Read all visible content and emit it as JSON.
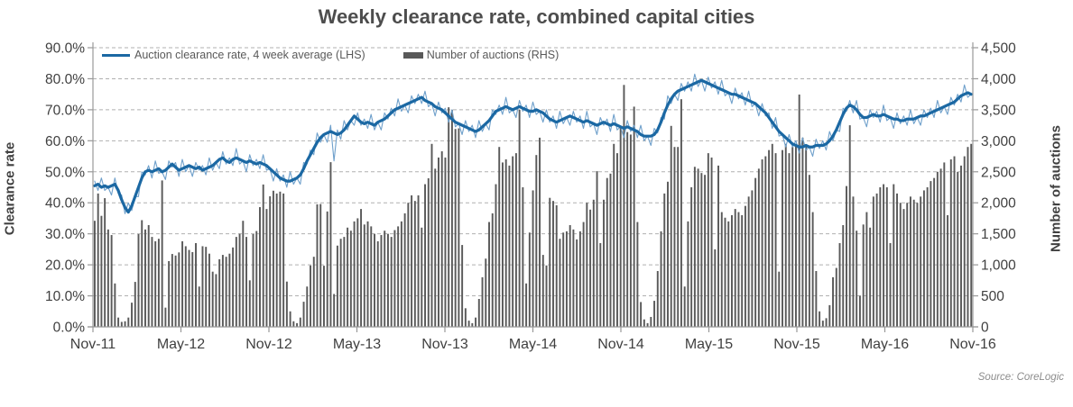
{
  "title": "Weekly clearance rate, combined capital cities",
  "legend": {
    "line_label": "Auction clearance rate, 4 week average (LHS)",
    "bar_label": "Number of auctions (RHS)"
  },
  "source": "Source: CoreLogic",
  "axes": {
    "left_title": "Clearance rate",
    "right_title": "Number of auctions",
    "left_ticks": [
      "0.0%",
      "10.0%",
      "20.0%",
      "30.0%",
      "40.0%",
      "50.0%",
      "60.0%",
      "70.0%",
      "80.0%",
      "90.0%"
    ],
    "right_ticks": [
      "0",
      "500",
      "1,000",
      "1,500",
      "2,000",
      "2,500",
      "3,000",
      "3,500",
      "4,000",
      "4,500"
    ],
    "x_ticks": [
      "Nov-11",
      "May-12",
      "Nov-12",
      "May-13",
      "Nov-13",
      "May-14",
      "Nov-14",
      "May-15",
      "Nov-15",
      "May-16",
      "Nov-16"
    ]
  },
  "colors": {
    "avg_line": "#1b68a3",
    "weekly_line": "#6fa0cb",
    "bars": "#5a5a5a",
    "grid": "#b0b0b0",
    "axis": "#999999",
    "tick_text": "#404040"
  },
  "chart_data": {
    "type": "mixed",
    "x_start": "Nov-11",
    "x_end": "Nov-16",
    "points": 261,
    "frequency": "weekly",
    "left_axis": {
      "label": "Clearance rate",
      "min": 0,
      "max": 90,
      "unit": "%",
      "tick_step": 10
    },
    "right_axis": {
      "label": "Number of auctions",
      "min": 0,
      "max": 4500,
      "tick_step": 500
    },
    "grid": "dashed-horizontal",
    "legend_position": "top-left-inside",
    "series": [
      {
        "name": "Auction clearance rate, weekly",
        "type": "line",
        "axis": "left",
        "color": "#6fa0cb",
        "width": 1.1,
        "values": [
          47,
          44,
          48,
          44,
          45,
          42.5,
          48,
          43,
          42.5,
          36.5,
          40,
          37.5,
          42,
          42,
          50,
          49,
          52,
          48,
          53.5,
          49.5,
          50,
          47.5,
          53.5,
          51.5,
          53,
          48.5,
          54,
          50,
          52,
          48.5,
          53,
          50.5,
          52,
          49,
          54.5,
          50.5,
          53,
          51,
          56.5,
          52.5,
          54.5,
          52,
          57.5,
          52.5,
          53.5,
          50,
          55.5,
          52,
          54,
          51,
          55.5,
          50.5,
          51,
          47,
          51,
          47,
          49,
          45,
          50,
          46,
          48,
          46,
          53,
          52.5,
          57,
          55.5,
          62.5,
          59.5,
          62,
          59.5,
          65,
          53.5,
          63.5,
          60.5,
          66.5,
          63.5,
          66.5,
          65,
          69,
          65,
          67,
          64,
          68.5,
          63.5,
          66,
          63.5,
          69,
          67,
          70.5,
          68,
          73.5,
          69.5,
          71.5,
          69,
          74.5,
          72,
          75,
          72,
          76,
          71,
          72,
          68,
          72.5,
          69,
          70.5,
          66,
          70,
          64.5,
          65.5,
          62,
          66.5,
          63,
          65,
          61,
          66.5,
          63,
          65.5,
          63.5,
          70,
          68.5,
          71.5,
          68.5,
          74,
          69,
          70,
          67.5,
          73,
          69.5,
          71.5,
          67.5,
          72.5,
          68.5,
          69.5,
          66,
          70,
          66,
          68,
          64,
          69.5,
          65.5,
          67.5,
          65,
          69.5,
          66,
          68,
          64,
          69.5,
          64.5,
          65.5,
          62,
          67.5,
          65,
          67,
          63,
          68.5,
          63.5,
          64.5,
          61,
          66.5,
          63,
          65,
          61,
          65,
          60,
          61.5,
          58.5,
          64,
          62.5,
          67.5,
          67,
          74.5,
          72,
          75,
          73,
          78.5,
          76,
          79,
          76,
          81.5,
          77.5,
          79.5,
          76,
          80.5,
          77,
          79,
          75,
          79.5,
          74.5,
          75.5,
          72,
          77,
          73.5,
          75.5,
          71.5,
          76,
          71,
          72,
          68,
          72,
          68,
          69,
          64,
          67.5,
          61.5,
          62,
          58,
          62,
          58,
          60,
          56,
          61,
          57,
          58,
          55,
          60.5,
          57.5,
          60,
          57,
          63,
          60,
          63.5,
          63,
          70.5,
          69.5,
          73,
          69,
          73,
          67,
          67.5,
          64.5,
          70,
          67.5,
          69.5,
          66,
          71.5,
          66.5,
          67.5,
          64,
          69,
          65.5,
          68,
          65,
          70,
          65.5,
          67.5,
          65,
          70,
          67.5,
          70.5,
          67.5,
          73,
          69,
          71,
          68.5,
          74,
          71.5,
          75,
          72.5,
          78,
          74,
          75
        ]
      },
      {
        "name": "Auction clearance rate, 4 week average (LHS)",
        "type": "line",
        "axis": "left",
        "color": "#1b68a3",
        "width": 3.2,
        "values": [
          45.5,
          46,
          45,
          45.5,
          45,
          45.5,
          46,
          44,
          41,
          38.5,
          37,
          39,
          42,
          45,
          48,
          50,
          50.5,
          50,
          50.5,
          51,
          50,
          50.5,
          51.5,
          52.5,
          51.5,
          50.5,
          51,
          51.5,
          52,
          51.5,
          51,
          51.5,
          50.5,
          51,
          51.5,
          52,
          53,
          54,
          54.5,
          53.5,
          53,
          54,
          54.5,
          54,
          53.5,
          53,
          53.5,
          53,
          52.5,
          53,
          52.5,
          52,
          51,
          50,
          49,
          48,
          47.5,
          47,
          47,
          47.5,
          48,
          49,
          51,
          53.5,
          55.5,
          57.5,
          59.5,
          61,
          62,
          62.5,
          63,
          62.5,
          62,
          62.5,
          63.5,
          65,
          66.5,
          68,
          67,
          66,
          65.5,
          66,
          65.5,
          65,
          66,
          66.5,
          67,
          68,
          69,
          70,
          70.5,
          71,
          71.5,
          72,
          72.5,
          73,
          73.5,
          74,
          73,
          72.5,
          72,
          71,
          70.5,
          70,
          69,
          68,
          67,
          66,
          65.5,
          65,
          64.5,
          64,
          63.5,
          63,
          63.5,
          64.5,
          65.5,
          66.5,
          68,
          69.5,
          70,
          70.5,
          71,
          70.5,
          70,
          70.5,
          71,
          70.5,
          70,
          69.5,
          69.5,
          70,
          69.5,
          69,
          68,
          67,
          66.5,
          66,
          66.5,
          67,
          67.5,
          68,
          67.5,
          67,
          66.5,
          66,
          66.5,
          66,
          65.5,
          65,
          65.5,
          66,
          65.5,
          65,
          65.5,
          65,
          64.5,
          64,
          64.5,
          64,
          63.5,
          63,
          62,
          61.5,
          61.5,
          61.5,
          62,
          63.5,
          66,
          69,
          71.5,
          73.5,
          75,
          76,
          76.5,
          77,
          77.5,
          78,
          78.5,
          79,
          79.5,
          79,
          78.5,
          78,
          77.5,
          77,
          76.5,
          76,
          75.5,
          75,
          75,
          74.5,
          74,
          73.5,
          73,
          72.5,
          72,
          71,
          70,
          69,
          67.5,
          66,
          64.5,
          63,
          62,
          61,
          60,
          59,
          58.5,
          58,
          58,
          58.5,
          58,
          58,
          58.5,
          58.5,
          58.5,
          59,
          60,
          61.5,
          63.5,
          66,
          68.5,
          70.5,
          71.5,
          71,
          70,
          68.5,
          67.5,
          67.5,
          68,
          68.5,
          68,
          68,
          68.5,
          68,
          67.5,
          67,
          67,
          66.5,
          66.5,
          67,
          67,
          67,
          67.5,
          68,
          68,
          68.5,
          69,
          69.5,
          70,
          70.5,
          71,
          71.5,
          72,
          72.5,
          73.5,
          74.5,
          75,
          75.5,
          75
        ]
      },
      {
        "name": "Number of auctions (RHS)",
        "type": "bar",
        "axis": "right",
        "color": "#5a5a5a",
        "values": [
          1710,
          2150,
          1790,
          2075,
          1570,
          1480,
          700,
          150,
          80,
          90,
          150,
          390,
          725,
          1495,
          1720,
          1570,
          1640,
          1450,
          1380,
          1420,
          2360,
          310,
          1060,
          1175,
          1150,
          1200,
          1380,
          1300,
          1240,
          1205,
          1350,
          650,
          1300,
          1290,
          1180,
          890,
          850,
          1090,
          1160,
          1130,
          1180,
          1280,
          1450,
          1500,
          1710,
          1450,
          750,
          1495,
          1545,
          1930,
          2295,
          1900,
          2105,
          2195,
          2150,
          2180,
          2150,
          730,
          250,
          90,
          60,
          150,
          405,
          650,
          990,
          1130,
          1975,
          1980,
          985,
          1860,
          2655,
          530,
          1310,
          1420,
          1450,
          1600,
          1550,
          1700,
          1750,
          1900,
          1650,
          1700,
          1620,
          1500,
          1380,
          1480,
          1550,
          1500,
          1450,
          1560,
          1620,
          1700,
          1830,
          2000,
          2120,
          2030,
          2120,
          1600,
          2300,
          2395,
          2950,
          2550,
          2730,
          2830,
          2730,
          3540,
          3500,
          3190,
          3200,
          1320,
          300,
          100,
          60,
          150,
          450,
          800,
          1100,
          1690,
          1830,
          2300,
          2900,
          2650,
          2700,
          2600,
          2750,
          2800,
          3500,
          2250,
          700,
          1520,
          2200,
          2770,
          3050,
          1160,
          990,
          2080,
          2030,
          1960,
          1420,
          1520,
          1540,
          1640,
          1570,
          1410,
          1540,
          1690,
          2000,
          1890,
          2050,
          2510,
          1350,
          2050,
          2400,
          2470,
          2950,
          2800,
          3240,
          3900,
          3140,
          3100,
          3550,
          1690,
          400,
          120,
          60,
          160,
          420,
          900,
          1540,
          2150,
          2340,
          3240,
          2900,
          2900,
          3670,
          650,
          1700,
          2250,
          2580,
          2550,
          2480,
          2450,
          2800,
          2730,
          1250,
          2600,
          1850,
          1760,
          1700,
          1800,
          1900,
          1850,
          1800,
          1950,
          2100,
          2200,
          2400,
          2550,
          2700,
          2750,
          2850,
          2950,
          2800,
          890,
          2850,
          2950,
          2800,
          2900,
          2950,
          3745,
          3050,
          2900,
          2450,
          1850,
          900,
          250,
          100,
          140,
          350,
          800,
          950,
          1350,
          1640,
          2270,
          3250,
          2100,
          1550,
          500,
          1650,
          1850,
          1600,
          2100,
          2150,
          2250,
          2300,
          2250,
          1350,
          2300,
          2150,
          2000,
          1900,
          2000,
          2100,
          2050,
          2000,
          2100,
          2200,
          2250,
          2350,
          2400,
          2500,
          2550,
          2650,
          1800,
          2700,
          2750,
          2500,
          2600,
          2750,
          2900,
          2950
        ]
      }
    ]
  }
}
